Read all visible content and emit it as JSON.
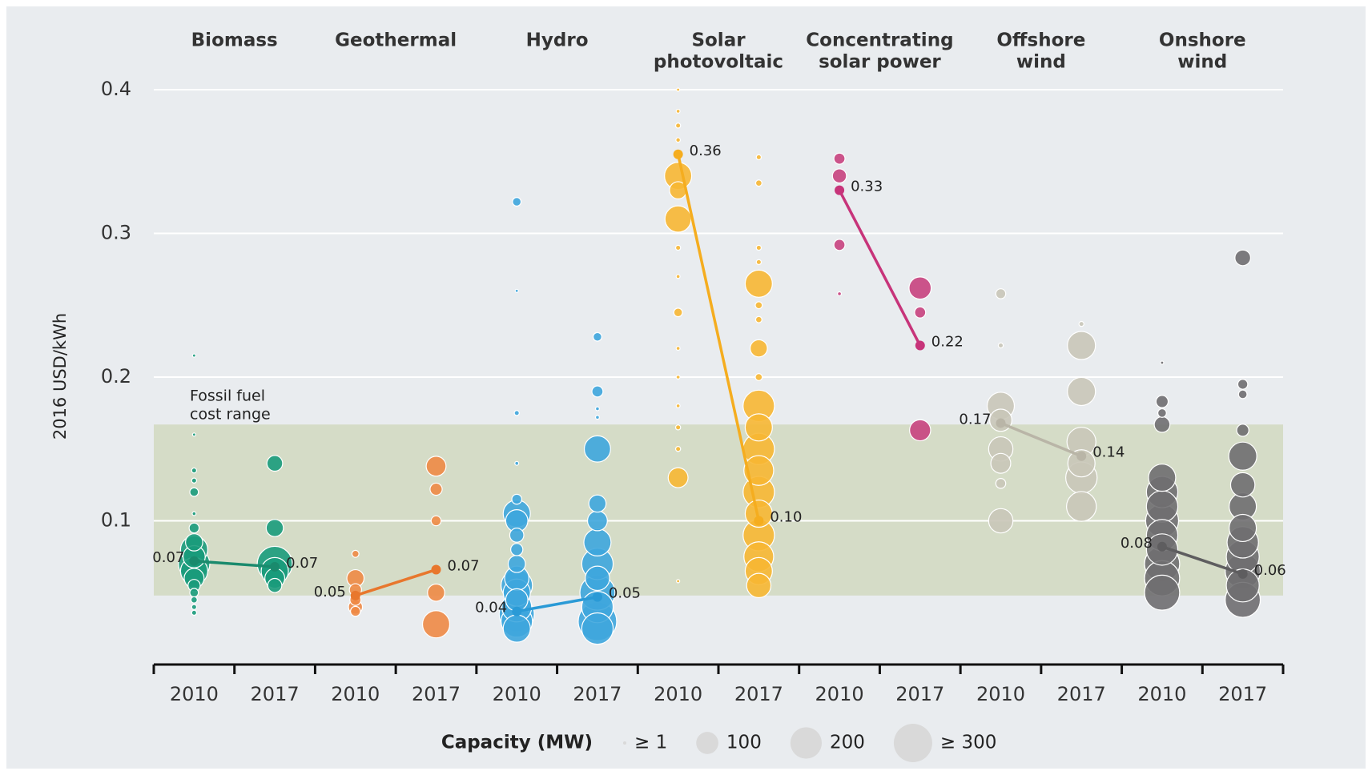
{
  "chart_data": {
    "type": "bubble",
    "y_label": "2016 USD/kWh",
    "ylim": [
      0,
      0.4
    ],
    "yticks": [
      0.1,
      0.2,
      0.3,
      0.4
    ],
    "grid": true,
    "categories": [
      "2010",
      "2017",
      "2010",
      "2017",
      "2010",
      "2017",
      "2010",
      "2017",
      "2010",
      "2017",
      "2010",
      "2017",
      "2010",
      "2017"
    ],
    "band": {
      "range": [
        0.048,
        0.167
      ],
      "color": "#d5dcc7",
      "label": [
        "Fossil fuel",
        "cost range"
      ]
    },
    "size_legend": {
      "title": "Capacity (MW)",
      "color": "#d9d9d9",
      "items": [
        {
          "value": 1,
          "label": "≥ 1"
        },
        {
          "value": 100,
          "label": "100"
        },
        {
          "value": 200,
          "label": "200"
        },
        {
          "value": 300,
          "label": "≥ 300"
        }
      ]
    },
    "groups": [
      {
        "name": [
          "Biomass"
        ],
        "color": "#1a9b7b",
        "line_color": "#1a8a6d",
        "averages": [
          0.072,
          0.068
        ],
        "average_labels": [
          "0.07",
          "0.07"
        ],
        "bubbles": [
          [
            [
              0.215,
              1
            ],
            [
              0.16,
              1
            ],
            [
              0.135,
              5
            ],
            [
              0.128,
              5
            ],
            [
              0.12,
              15
            ],
            [
              0.105,
              3
            ],
            [
              0.095,
              20
            ],
            [
              0.085,
              60
            ],
            [
              0.08,
              150
            ],
            [
              0.075,
              100
            ],
            [
              0.07,
              200
            ],
            [
              0.065,
              150
            ],
            [
              0.06,
              80
            ],
            [
              0.055,
              30
            ],
            [
              0.05,
              15
            ],
            [
              0.045,
              8
            ],
            [
              0.04,
              5
            ],
            [
              0.036,
              5
            ]
          ],
          [
            [
              0.14,
              50
            ],
            [
              0.095,
              60
            ],
            [
              0.07,
              250
            ],
            [
              0.065,
              150
            ],
            [
              0.06,
              80
            ],
            [
              0.055,
              40
            ]
          ]
        ]
      },
      {
        "name": [
          "Geothermal"
        ],
        "color": "#ee8a45",
        "line_color": "#e8772d",
        "averages": [
          0.048,
          0.066
        ],
        "average_labels": [
          "0.05",
          "0.07"
        ],
        "bubbles": [
          [
            [
              0.077,
              10
            ],
            [
              0.06,
              60
            ],
            [
              0.052,
              30
            ],
            [
              0.045,
              25
            ],
            [
              0.04,
              40
            ],
            [
              0.037,
              20
            ]
          ],
          [
            [
              0.138,
              80
            ],
            [
              0.122,
              30
            ],
            [
              0.1,
              20
            ],
            [
              0.05,
              60
            ],
            [
              0.028,
              150
            ]
          ]
        ]
      },
      {
        "name": [
          "Hydro"
        ],
        "color": "#3ea6dd",
        "line_color": "#2a9ad6",
        "averages": [
          0.037,
          0.047
        ],
        "average_labels": [
          "0.04",
          "0.05"
        ],
        "bubbles": [
          [
            [
              0.322,
              15
            ],
            [
              0.26,
              1
            ],
            [
              0.175,
              5
            ],
            [
              0.14,
              3
            ],
            [
              0.115,
              20
            ],
            [
              0.105,
              150
            ],
            [
              0.1,
              100
            ],
            [
              0.09,
              40
            ],
            [
              0.08,
              30
            ],
            [
              0.07,
              60
            ],
            [
              0.06,
              120
            ],
            [
              0.055,
              200
            ],
            [
              0.05,
              150
            ],
            [
              0.045,
              100
            ],
            [
              0.04,
              180
            ],
            [
              0.035,
              250
            ],
            [
              0.03,
              200
            ],
            [
              0.025,
              150
            ]
          ],
          [
            [
              0.228,
              15
            ],
            [
              0.19,
              25
            ],
            [
              0.178,
              3
            ],
            [
              0.172,
              3
            ],
            [
              0.15,
              140
            ],
            [
              0.112,
              60
            ],
            [
              0.1,
              80
            ],
            [
              0.085,
              150
            ],
            [
              0.07,
              200
            ],
            [
              0.06,
              120
            ],
            [
              0.05,
              250
            ],
            [
              0.04,
              200
            ],
            [
              0.03,
              300
            ],
            [
              0.025,
              200
            ]
          ]
        ]
      },
      {
        "name": [
          "Solar",
          "photovoltaic"
        ],
        "color": "#f7b733",
        "line_color": "#f5ad1f",
        "averages": [
          0.355,
          0.1
        ],
        "average_labels": [
          "0.36",
          "0.10"
        ],
        "bubbles": [
          [
            [
              0.4,
              1
            ],
            [
              0.385,
              3
            ],
            [
              0.375,
              5
            ],
            [
              0.365,
              4
            ],
            [
              0.355,
              8
            ],
            [
              0.34,
              150
            ],
            [
              0.33,
              60
            ],
            [
              0.31,
              140
            ],
            [
              0.29,
              5
            ],
            [
              0.27,
              3
            ],
            [
              0.245,
              15
            ],
            [
              0.22,
              3
            ],
            [
              0.2,
              3
            ],
            [
              0.18,
              3
            ],
            [
              0.165,
              5
            ],
            [
              0.15,
              5
            ],
            [
              0.13,
              80
            ],
            [
              0.058,
              1
            ]
          ],
          [
            [
              0.353,
              5
            ],
            [
              0.335,
              8
            ],
            [
              0.29,
              5
            ],
            [
              0.28,
              5
            ],
            [
              0.265,
              150
            ],
            [
              0.25,
              10
            ],
            [
              0.24,
              8
            ],
            [
              0.22,
              60
            ],
            [
              0.2,
              10
            ],
            [
              0.18,
              200
            ],
            [
              0.165,
              150
            ],
            [
              0.15,
              200
            ],
            [
              0.135,
              180
            ],
            [
              0.12,
              200
            ],
            [
              0.105,
              150
            ],
            [
              0.09,
              200
            ],
            [
              0.075,
              180
            ],
            [
              0.065,
              150
            ],
            [
              0.055,
              120
            ]
          ]
        ]
      },
      {
        "name": [
          "Concentrating",
          "solar power"
        ],
        "color": "#c8427e",
        "line_color": "#c7347a",
        "averages": [
          0.33,
          0.222
        ],
        "average_labels": [
          "0.33",
          "0.22"
        ],
        "bubbles": [
          [
            [
              0.352,
              25
            ],
            [
              0.34,
              40
            ],
            [
              0.292,
              25
            ],
            [
              0.258,
              3
            ]
          ],
          [
            [
              0.262,
              100
            ],
            [
              0.245,
              25
            ],
            [
              0.163,
              90
            ]
          ]
        ]
      },
      {
        "name": [
          "Offshore",
          "wind"
        ],
        "color": "#c9c6b8",
        "line_color": "#b9b5a7",
        "averages": [
          0.168,
          0.145
        ],
        "average_labels": [
          "0.17",
          "0.14"
        ],
        "bubbles": [
          [
            [
              0.258,
              20
            ],
            [
              0.222,
              5
            ],
            [
              0.18,
              150
            ],
            [
              0.17,
              100
            ],
            [
              0.15,
              120
            ],
            [
              0.14,
              80
            ],
            [
              0.126,
              20
            ],
            [
              0.1,
              120
            ]
          ],
          [
            [
              0.237,
              5
            ],
            [
              0.222,
              160
            ],
            [
              0.19,
              160
            ],
            [
              0.155,
              170
            ],
            [
              0.14,
              150
            ],
            [
              0.13,
              200
            ],
            [
              0.11,
              180
            ]
          ]
        ]
      },
      {
        "name": [
          "Onshore",
          "wind"
        ],
        "color": "#6f6e70",
        "line_color": "#5e5d5f",
        "averages": [
          0.082,
          0.063
        ],
        "average_labels": [
          "0.08",
          "0.06"
        ],
        "bubbles": [
          [
            [
              0.21,
              1
            ],
            [
              0.183,
              30
            ],
            [
              0.175,
              15
            ],
            [
              0.167,
              50
            ],
            [
              0.13,
              150
            ],
            [
              0.12,
              200
            ],
            [
              0.11,
              200
            ],
            [
              0.1,
              220
            ],
            [
              0.09,
              200
            ],
            [
              0.08,
              200
            ],
            [
              0.07,
              250
            ],
            [
              0.06,
              250
            ],
            [
              0.05,
              250
            ]
          ],
          [
            [
              0.283,
              50
            ],
            [
              0.195,
              20
            ],
            [
              0.188,
              15
            ],
            [
              0.163,
              30
            ],
            [
              0.145,
              160
            ],
            [
              0.125,
              120
            ],
            [
              0.11,
              150
            ],
            [
              0.095,
              150
            ],
            [
              0.085,
              200
            ],
            [
              0.075,
              220
            ],
            [
              0.065,
              250
            ],
            [
              0.055,
              220
            ],
            [
              0.045,
              250
            ]
          ]
        ]
      }
    ]
  }
}
